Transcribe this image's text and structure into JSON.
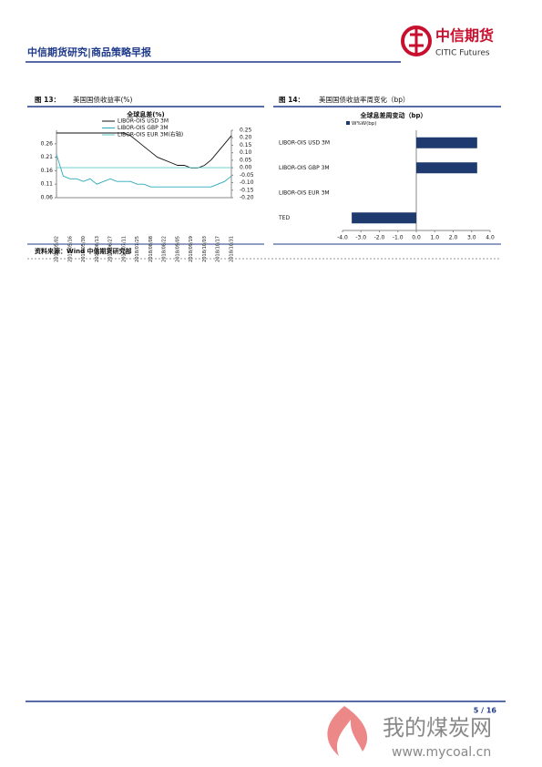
{
  "header": {
    "title": "中信期货研究|商品策略早报",
    "logo_cn": "中信期货",
    "logo_en": "CITIC Futures"
  },
  "figures": [
    {
      "number": "图 13：",
      "caption": "美国国债收益率(%)"
    },
    {
      "number": "图 14：",
      "caption": "美国国债收益率周变化（bp）"
    }
  ],
  "chart_data": [
    {
      "type": "line",
      "title": "全球息差(%)",
      "categories": [
        "2018/05/02",
        null,
        "2018/05/16",
        null,
        "2018/05/30",
        null,
        "2018/06/13",
        null,
        "2018/06/27",
        null,
        "2018/07/11",
        null,
        "2018/07/25",
        null,
        "2018/08/08",
        null,
        "2018/08/22",
        null,
        "2018/09/05",
        null,
        "2018/09/19",
        null,
        "2018/10/03",
        null,
        "2018/10/17",
        null,
        "2018/10/31"
      ],
      "series": [
        {
          "name": "LIBOR-OIS USD 3M",
          "color": "#111111",
          "values": [
            0.3,
            0.3,
            0.3,
            0.3,
            0.3,
            0.3,
            0.3,
            0.3,
            0.3,
            0.3,
            0.3,
            0.29,
            0.27,
            0.25,
            0.23,
            0.21,
            0.2,
            0.19,
            0.18,
            0.18,
            0.17,
            0.17,
            0.18,
            0.2,
            0.23,
            0.26,
            0.29
          ]
        },
        {
          "name": "LIBOR-OIS GBP 3M",
          "color": "#2aa9b8",
          "values": [
            0.22,
            0.14,
            0.13,
            0.13,
            0.12,
            0.13,
            0.11,
            0.12,
            0.13,
            0.12,
            0.12,
            0.12,
            0.11,
            0.11,
            0.1,
            0.1,
            0.1,
            0.1,
            0.1,
            0.1,
            0.1,
            0.1,
            0.1,
            0.1,
            0.11,
            0.12,
            0.14
          ]
        },
        {
          "name": "LIBOR-OIS EUR 3M(右轴)",
          "color": "#5bc8c8",
          "axis": "y2",
          "values": [
            0.0,
            0.0,
            0.0,
            0.0,
            0.0,
            0.0,
            0.0,
            0.0,
            0.0,
            0.0,
            0.0,
            0.0,
            0.0,
            0.0,
            0.0,
            0.0,
            0.0,
            0.0,
            0.0,
            0.0,
            0.0,
            0.0,
            0.0,
            0.0,
            0.0,
            0.0,
            0.0
          ]
        }
      ],
      "ylim": [
        0.06,
        0.31
      ],
      "yticks": [
        0.06,
        0.11,
        0.16,
        0.21,
        0.26
      ],
      "y2lim": [
        -0.2,
        0.25
      ],
      "y2ticks": [
        {
          "value": 0.25,
          "label": "0.25"
        },
        {
          "value": 0.2,
          "label": "0.20"
        },
        {
          "value": 0.15,
          "label": "0.15"
        },
        {
          "value": 0.1,
          "label": "0.10"
        },
        {
          "value": 0.05,
          "label": "0.05"
        },
        {
          "value": 0,
          "label": "0.00"
        },
        {
          "value": -0.05,
          "label": "-0.05"
        },
        {
          "value": -0.1,
          "label": "-0.10"
        },
        {
          "value": -0.15,
          "label": "-0.15"
        },
        {
          "value": -0.2,
          "label": "-0.20"
        }
      ]
    },
    {
      "type": "hbar",
      "title": "全球息差周变动（bp）",
      "categories": [
        "LIBOR-OIS USD 3M",
        "LIBOR-OIS GBP 3M",
        "LIBOR-OIS EUR 3M",
        "TED"
      ],
      "series": [
        {
          "name": "W%W(bp)",
          "color": "#1f3a6e",
          "values": [
            3.3,
            3.3,
            0,
            -3.5
          ]
        }
      ],
      "xlim": [
        -4,
        4
      ],
      "xticks": [
        {
          "value": -4,
          "label": "-4.0"
        },
        {
          "value": -3,
          "label": "-3.0"
        },
        {
          "value": -2,
          "label": "-2.0"
        },
        {
          "value": -1,
          "label": "-1.0"
        },
        {
          "value": 0,
          "label": "0.0"
        },
        {
          "value": 1,
          "label": "1.0"
        },
        {
          "value": 2,
          "label": "2.0"
        },
        {
          "value": 3,
          "label": "3.0"
        },
        {
          "value": 4,
          "label": "4.0"
        }
      ]
    }
  ],
  "source": "资料来源：Wind  中信期货研究部",
  "footer": {
    "page": "5 / 16"
  },
  "watermark": {
    "name": "我的煤炭网",
    "url": "www.mycoal.cn"
  }
}
